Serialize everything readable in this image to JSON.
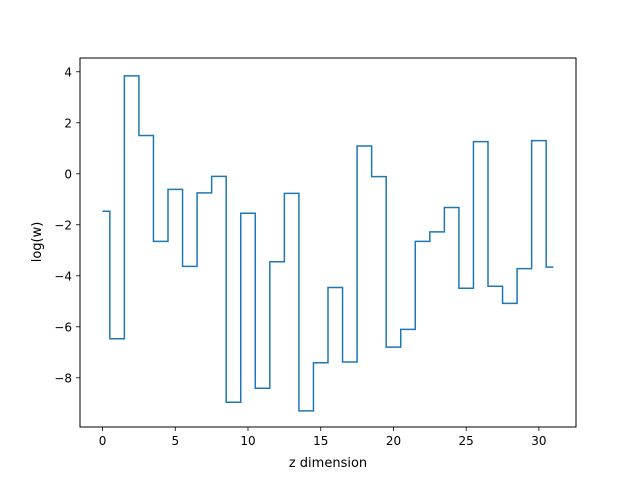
{
  "chart_data": {
    "type": "line",
    "drawstyle": "steps-mid",
    "xlabel": "z dimension",
    "ylabel": "log(w)",
    "xlim": [
      -1.55,
      32.55
    ],
    "ylim": [
      -9.93,
      4.54
    ],
    "xticks": [
      0,
      5,
      10,
      15,
      20,
      25,
      30
    ],
    "xtick_labels": [
      "0",
      "5",
      "10",
      "15",
      "20",
      "25",
      "30"
    ],
    "yticks": [
      -8,
      -6,
      -4,
      -2,
      0,
      2,
      4
    ],
    "ytick_labels": [
      "−8",
      "−6",
      "−4",
      "−2",
      "0",
      "2",
      "4"
    ],
    "grid": false,
    "series": [
      {
        "color": "#1f77b4",
        "x": [
          0,
          1,
          2,
          3,
          4,
          5,
          6,
          7,
          8,
          9,
          10,
          11,
          12,
          13,
          14,
          15,
          16,
          17,
          18,
          19,
          20,
          21,
          22,
          23,
          24,
          25,
          26,
          27,
          28,
          29,
          30,
          31
        ],
        "y": [
          -1.47,
          -6.47,
          3.84,
          1.5,
          -2.65,
          -0.61,
          -3.63,
          -0.75,
          -0.1,
          -8.96,
          -1.55,
          -8.41,
          -3.45,
          -0.77,
          -9.3,
          -7.41,
          -4.46,
          -7.38,
          1.09,
          -0.11,
          -6.8,
          -6.1,
          -2.65,
          -2.28,
          -1.32,
          -4.49,
          1.26,
          -4.41,
          -5.08,
          -3.72,
          1.3,
          -3.66
        ]
      }
    ]
  }
}
